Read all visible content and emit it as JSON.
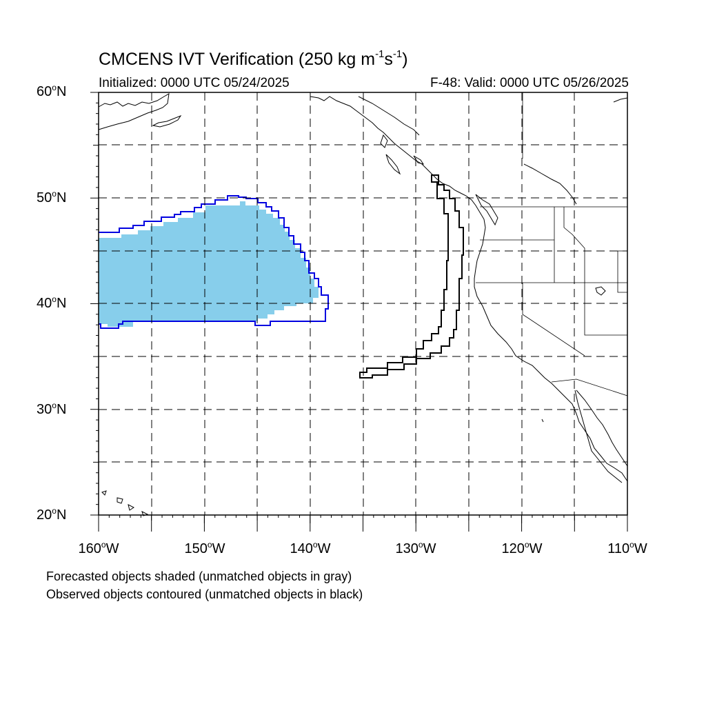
{
  "title": {
    "main": "CMCENS IVT Verification (250 kg m",
    "sup1": "-1",
    "mid": "s",
    "sup2": "-1",
    "end": ")"
  },
  "subtitle_left": "Initialized: 0000 UTC 05/24/2025",
  "subtitle_right": "F-48: Valid: 0000 UTC 05/26/2025",
  "lat_labels": [
    {
      "num": "60",
      "hemi": "N"
    },
    {
      "num": "50",
      "hemi": "N"
    },
    {
      "num": "40",
      "hemi": "N"
    },
    {
      "num": "30",
      "hemi": "N"
    },
    {
      "num": "20",
      "hemi": "N"
    }
  ],
  "lon_labels": [
    {
      "num": "160",
      "hemi": "W"
    },
    {
      "num": "150",
      "hemi": "W"
    },
    {
      "num": "140",
      "hemi": "W"
    },
    {
      "num": "130",
      "hemi": "W"
    },
    {
      "num": "120",
      "hemi": "W"
    },
    {
      "num": "110",
      "hemi": "W"
    }
  ],
  "notes": [
    "Forecasted objects shaded (unmatched objects in gray)",
    "Observed objects contoured (unmatched objects in black)"
  ],
  "colors": {
    "forecast_fill": "#87ceeb",
    "matched_contour": "#0000e0",
    "unmatched_contour": "#000000",
    "coastline": "#000000",
    "grid": "#000000"
  },
  "map_extent": {
    "lon_min": -160,
    "lon_max": -110,
    "lat_min": 20,
    "lat_max": 60
  }
}
